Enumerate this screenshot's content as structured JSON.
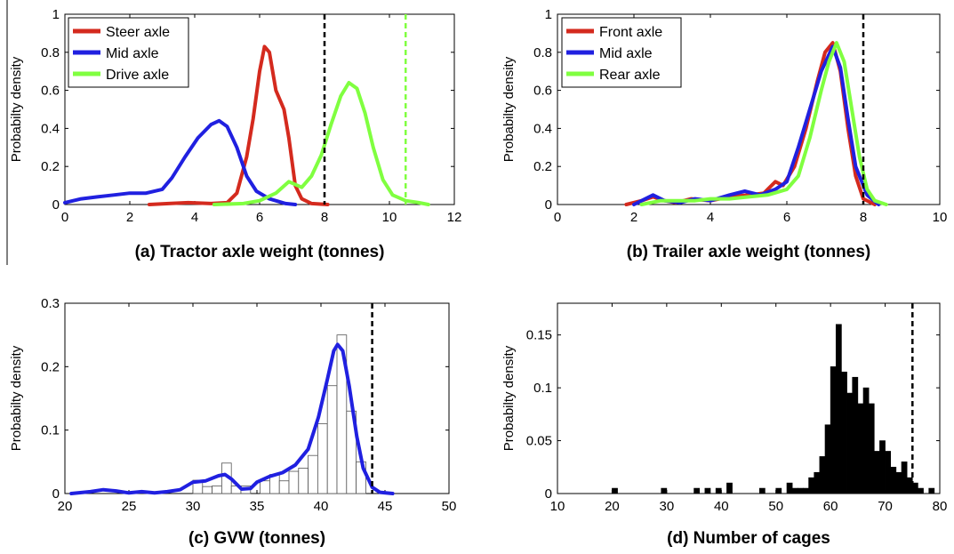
{
  "chart_data": [
    {
      "type": "line",
      "title": "(a) Tractor axle weight (tonnes)",
      "xlabel": "",
      "ylabel": "Probabilty density",
      "xlim": [
        0,
        12
      ],
      "ylim": [
        0,
        1
      ],
      "xticks": [
        0,
        2,
        4,
        6,
        8,
        10,
        12
      ],
      "yticks": [
        0,
        0.2,
        0.4,
        0.6,
        0.8,
        1
      ],
      "ytick_labels": [
        "0",
        "0.2",
        "0.4",
        "0.6",
        "0.8",
        "1"
      ],
      "legend_position": "top-left",
      "vlines": [
        {
          "x": 8,
          "color": "#000000",
          "style": "dashed"
        },
        {
          "x": 10.5,
          "color": "#80ff40",
          "style": "dashed"
        }
      ],
      "series": [
        {
          "name": "Steer axle",
          "color": "#d42a1e",
          "points": [
            [
              2.6,
              0
            ],
            [
              3.2,
              0.005
            ],
            [
              3.8,
              0.01
            ],
            [
              4.5,
              0.005
            ],
            [
              5.0,
              0.01
            ],
            [
              5.3,
              0.06
            ],
            [
              5.6,
              0.25
            ],
            [
              5.8,
              0.45
            ],
            [
              6.0,
              0.7
            ],
            [
              6.15,
              0.83
            ],
            [
              6.3,
              0.8
            ],
            [
              6.5,
              0.6
            ],
            [
              6.75,
              0.5
            ],
            [
              6.9,
              0.35
            ],
            [
              7.1,
              0.1
            ],
            [
              7.3,
              0.03
            ],
            [
              7.6,
              0.005
            ],
            [
              8.1,
              0
            ]
          ]
        },
        {
          "name": "Mid axle",
          "color": "#2020e0",
          "points": [
            [
              0,
              0.01
            ],
            [
              0.5,
              0.03
            ],
            [
              1.0,
              0.04
            ],
            [
              1.5,
              0.05
            ],
            [
              2.0,
              0.06
            ],
            [
              2.5,
              0.06
            ],
            [
              3.0,
              0.08
            ],
            [
              3.3,
              0.14
            ],
            [
              3.7,
              0.25
            ],
            [
              4.1,
              0.35
            ],
            [
              4.5,
              0.42
            ],
            [
              4.75,
              0.44
            ],
            [
              5.0,
              0.41
            ],
            [
              5.3,
              0.3
            ],
            [
              5.6,
              0.15
            ],
            [
              5.9,
              0.07
            ],
            [
              6.3,
              0.03
            ],
            [
              6.8,
              0.005
            ],
            [
              7.1,
              0
            ]
          ]
        },
        {
          "name": "Drive axle",
          "color": "#80ff40",
          "points": [
            [
              4.6,
              0
            ],
            [
              5.5,
              0.005
            ],
            [
              6.0,
              0.02
            ],
            [
              6.5,
              0.06
            ],
            [
              6.9,
              0.12
            ],
            [
              7.3,
              0.09
            ],
            [
              7.6,
              0.15
            ],
            [
              7.9,
              0.26
            ],
            [
              8.2,
              0.42
            ],
            [
              8.5,
              0.57
            ],
            [
              8.75,
              0.64
            ],
            [
              9.0,
              0.61
            ],
            [
              9.25,
              0.48
            ],
            [
              9.5,
              0.3
            ],
            [
              9.8,
              0.13
            ],
            [
              10.1,
              0.05
            ],
            [
              10.5,
              0.02
            ],
            [
              10.9,
              0.01
            ],
            [
              11.2,
              0
            ]
          ]
        }
      ]
    },
    {
      "type": "line",
      "title": "(b) Trailer axle weight (tonnes)",
      "xlabel": "",
      "ylabel": "Probabilty density",
      "xlim": [
        0,
        10
      ],
      "ylim": [
        0,
        1
      ],
      "xticks": [
        0,
        2,
        4,
        6,
        8,
        10
      ],
      "yticks": [
        0,
        0.2,
        0.4,
        0.6,
        0.8,
        1
      ],
      "ytick_labels": [
        "0",
        "0.2",
        "0.4",
        "0.6",
        "0.8",
        "1"
      ],
      "legend_position": "top-left",
      "vlines": [
        {
          "x": 8,
          "color": "#000000",
          "style": "dashed"
        }
      ],
      "series": [
        {
          "name": "Front axle",
          "color": "#d42a1e",
          "points": [
            [
              1.8,
              0
            ],
            [
              2.2,
              0.02
            ],
            [
              2.5,
              0.04
            ],
            [
              2.8,
              0.02
            ],
            [
              3.1,
              0.01
            ],
            [
              3.5,
              0.03
            ],
            [
              4.0,
              0.02
            ],
            [
              4.5,
              0.04
            ],
            [
              5.0,
              0.05
            ],
            [
              5.4,
              0.06
            ],
            [
              5.7,
              0.12
            ],
            [
              5.9,
              0.1
            ],
            [
              6.2,
              0.2
            ],
            [
              6.5,
              0.4
            ],
            [
              6.8,
              0.65
            ],
            [
              7.0,
              0.8
            ],
            [
              7.2,
              0.85
            ],
            [
              7.4,
              0.7
            ],
            [
              7.6,
              0.4
            ],
            [
              7.8,
              0.15
            ],
            [
              8.0,
              0.03
            ],
            [
              8.3,
              0
            ]
          ]
        },
        {
          "name": "Mid axle",
          "color": "#2020e0",
          "points": [
            [
              2.0,
              0
            ],
            [
              2.3,
              0.03
            ],
            [
              2.5,
              0.05
            ],
            [
              2.8,
              0.02
            ],
            [
              3.2,
              0.01
            ],
            [
              3.6,
              0.03
            ],
            [
              4.0,
              0.02
            ],
            [
              4.5,
              0.05
            ],
            [
              4.9,
              0.07
            ],
            [
              5.3,
              0.05
            ],
            [
              5.7,
              0.08
            ],
            [
              6.0,
              0.12
            ],
            [
              6.3,
              0.3
            ],
            [
              6.6,
              0.5
            ],
            [
              6.9,
              0.7
            ],
            [
              7.2,
              0.83
            ],
            [
              7.4,
              0.72
            ],
            [
              7.6,
              0.45
            ],
            [
              7.8,
              0.2
            ],
            [
              8.1,
              0.05
            ],
            [
              8.4,
              0
            ]
          ]
        },
        {
          "name": "Rear axle",
          "color": "#80ff40",
          "points": [
            [
              2.2,
              0
            ],
            [
              2.7,
              0.02
            ],
            [
              3.2,
              0.02
            ],
            [
              3.6,
              0.02
            ],
            [
              4.0,
              0.03
            ],
            [
              4.5,
              0.03
            ],
            [
              5.0,
              0.04
            ],
            [
              5.5,
              0.05
            ],
            [
              6.0,
              0.08
            ],
            [
              6.3,
              0.15
            ],
            [
              6.6,
              0.35
            ],
            [
              6.9,
              0.6
            ],
            [
              7.1,
              0.75
            ],
            [
              7.3,
              0.85
            ],
            [
              7.5,
              0.75
            ],
            [
              7.7,
              0.5
            ],
            [
              7.9,
              0.25
            ],
            [
              8.1,
              0.08
            ],
            [
              8.3,
              0.02
            ],
            [
              8.6,
              0
            ]
          ]
        }
      ]
    },
    {
      "type": "bar",
      "title": "(c) GVW (tonnes)",
      "xlabel": "",
      "ylabel": "Probabilty density",
      "xlim": [
        20,
        50
      ],
      "ylim": [
        0,
        0.3
      ],
      "xticks": [
        20,
        25,
        30,
        35,
        40,
        45,
        50
      ],
      "yticks": [
        0,
        0.1,
        0.2,
        0.3
      ],
      "ytick_labels": [
        "0",
        "0.1",
        "0.2",
        "0.3"
      ],
      "vlines": [
        {
          "x": 44,
          "color": "#000000",
          "style": "dashed"
        }
      ],
      "bin_width": 0.75,
      "bins": [
        {
          "x": 30.0,
          "value": 0.021
        },
        {
          "x": 30.75,
          "value": 0.011
        },
        {
          "x": 31.5,
          "value": 0.012
        },
        {
          "x": 32.25,
          "value": 0.048
        },
        {
          "x": 33.0,
          "value": 0.012
        },
        {
          "x": 33.75,
          "value": 0.012
        },
        {
          "x": 34.5,
          "value": 0.0
        },
        {
          "x": 35.25,
          "value": 0.02
        },
        {
          "x": 36.0,
          "value": 0.03
        },
        {
          "x": 36.75,
          "value": 0.02
        },
        {
          "x": 37.5,
          "value": 0.035
        },
        {
          "x": 38.25,
          "value": 0.04
        },
        {
          "x": 39.0,
          "value": 0.06
        },
        {
          "x": 39.75,
          "value": 0.11
        },
        {
          "x": 40.5,
          "value": 0.17
        },
        {
          "x": 41.25,
          "value": 0.25
        },
        {
          "x": 42.0,
          "value": 0.13
        },
        {
          "x": 42.75,
          "value": 0.05
        }
      ],
      "series": [
        {
          "name": "",
          "color": "#2020e0",
          "points": [
            [
              20.5,
              0
            ],
            [
              22,
              0.003
            ],
            [
              23,
              0.006
            ],
            [
              24,
              0.004
            ],
            [
              25,
              0.001
            ],
            [
              26,
              0.003
            ],
            [
              27,
              0.001
            ],
            [
              28,
              0.003
            ],
            [
              29,
              0.006
            ],
            [
              30,
              0.018
            ],
            [
              31,
              0.02
            ],
            [
              32,
              0.028
            ],
            [
              32.5,
              0.03
            ],
            [
              33,
              0.023
            ],
            [
              33.8,
              0.007
            ],
            [
              34.5,
              0.008
            ],
            [
              35,
              0.018
            ],
            [
              36,
              0.027
            ],
            [
              37,
              0.033
            ],
            [
              38,
              0.045
            ],
            [
              39,
              0.07
            ],
            [
              39.8,
              0.12
            ],
            [
              40.5,
              0.18
            ],
            [
              41,
              0.225
            ],
            [
              41.3,
              0.235
            ],
            [
              41.7,
              0.225
            ],
            [
              42.2,
              0.17
            ],
            [
              42.8,
              0.09
            ],
            [
              43.3,
              0.04
            ],
            [
              44,
              0.01
            ],
            [
              44.6,
              0.002
            ],
            [
              45.6,
              0
            ]
          ]
        }
      ]
    },
    {
      "type": "bar",
      "title": "(d) Number of cages",
      "xlabel": "",
      "ylabel": "Probabilty density",
      "xlim": [
        10,
        80
      ],
      "ylim": [
        0,
        0.18
      ],
      "xticks": [
        10,
        20,
        30,
        40,
        50,
        60,
        70,
        80
      ],
      "yticks": [
        0,
        0.05,
        0.1,
        0.15
      ],
      "ytick_labels": [
        "0",
        "0.05",
        "0.1",
        "0.15"
      ],
      "vlines": [
        {
          "x": 75,
          "color": "#000000",
          "style": "dashed"
        }
      ],
      "bin_width": 1,
      "bins": [
        {
          "x": 20,
          "value": 0.005
        },
        {
          "x": 29,
          "value": 0.005
        },
        {
          "x": 35,
          "value": 0.005
        },
        {
          "x": 37,
          "value": 0.005
        },
        {
          "x": 39,
          "value": 0.005
        },
        {
          "x": 41,
          "value": 0.01
        },
        {
          "x": 47,
          "value": 0.005
        },
        {
          "x": 50,
          "value": 0.005
        },
        {
          "x": 52,
          "value": 0.01
        },
        {
          "x": 53,
          "value": 0.005
        },
        {
          "x": 54,
          "value": 0.005
        },
        {
          "x": 55,
          "value": 0.005
        },
        {
          "x": 56,
          "value": 0.015
        },
        {
          "x": 57,
          "value": 0.02
        },
        {
          "x": 58,
          "value": 0.035
        },
        {
          "x": 59,
          "value": 0.065
        },
        {
          "x": 60,
          "value": 0.12
        },
        {
          "x": 61,
          "value": 0.16
        },
        {
          "x": 62,
          "value": 0.115
        },
        {
          "x": 63,
          "value": 0.095
        },
        {
          "x": 64,
          "value": 0.11
        },
        {
          "x": 65,
          "value": 0.085
        },
        {
          "x": 66,
          "value": 0.1
        },
        {
          "x": 67,
          "value": 0.085
        },
        {
          "x": 68,
          "value": 0.04
        },
        {
          "x": 69,
          "value": 0.05
        },
        {
          "x": 70,
          "value": 0.04
        },
        {
          "x": 71,
          "value": 0.025
        },
        {
          "x": 72,
          "value": 0.02
        },
        {
          "x": 73,
          "value": 0.03
        },
        {
          "x": 74,
          "value": 0.015
        },
        {
          "x": 75,
          "value": 0.01
        },
        {
          "x": 76,
          "value": 0.005
        },
        {
          "x": 78,
          "value": 0.005
        }
      ],
      "series": []
    }
  ]
}
